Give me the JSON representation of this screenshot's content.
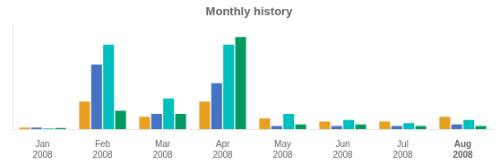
{
  "chart_data": {
    "type": "bar",
    "title": "Monthly history",
    "categories": [
      "Jan 2008",
      "Feb 2008",
      "Mar 2008",
      "Apr 2008",
      "May 2008",
      "Jun 2008",
      "Jul 2008",
      "Aug 2008"
    ],
    "series": [
      {
        "color": "#E8A020",
        "values": [
          1.0,
          18,
          8,
          18,
          7,
          5,
          5,
          8
        ]
      },
      {
        "color": "#4472C4",
        "values": [
          1.0,
          42,
          10,
          30,
          2,
          2,
          2,
          3
        ]
      },
      {
        "color": "#00BFBF",
        "values": [
          0.5,
          55,
          20,
          55,
          10,
          6,
          4,
          6
        ]
      },
      {
        "color": "#009960",
        "values": [
          0.8,
          12,
          10,
          60,
          3,
          3,
          2,
          2
        ]
      }
    ],
    "ylim": [
      0,
      68
    ],
    "grid": false,
    "tick_labels": "x"
  }
}
